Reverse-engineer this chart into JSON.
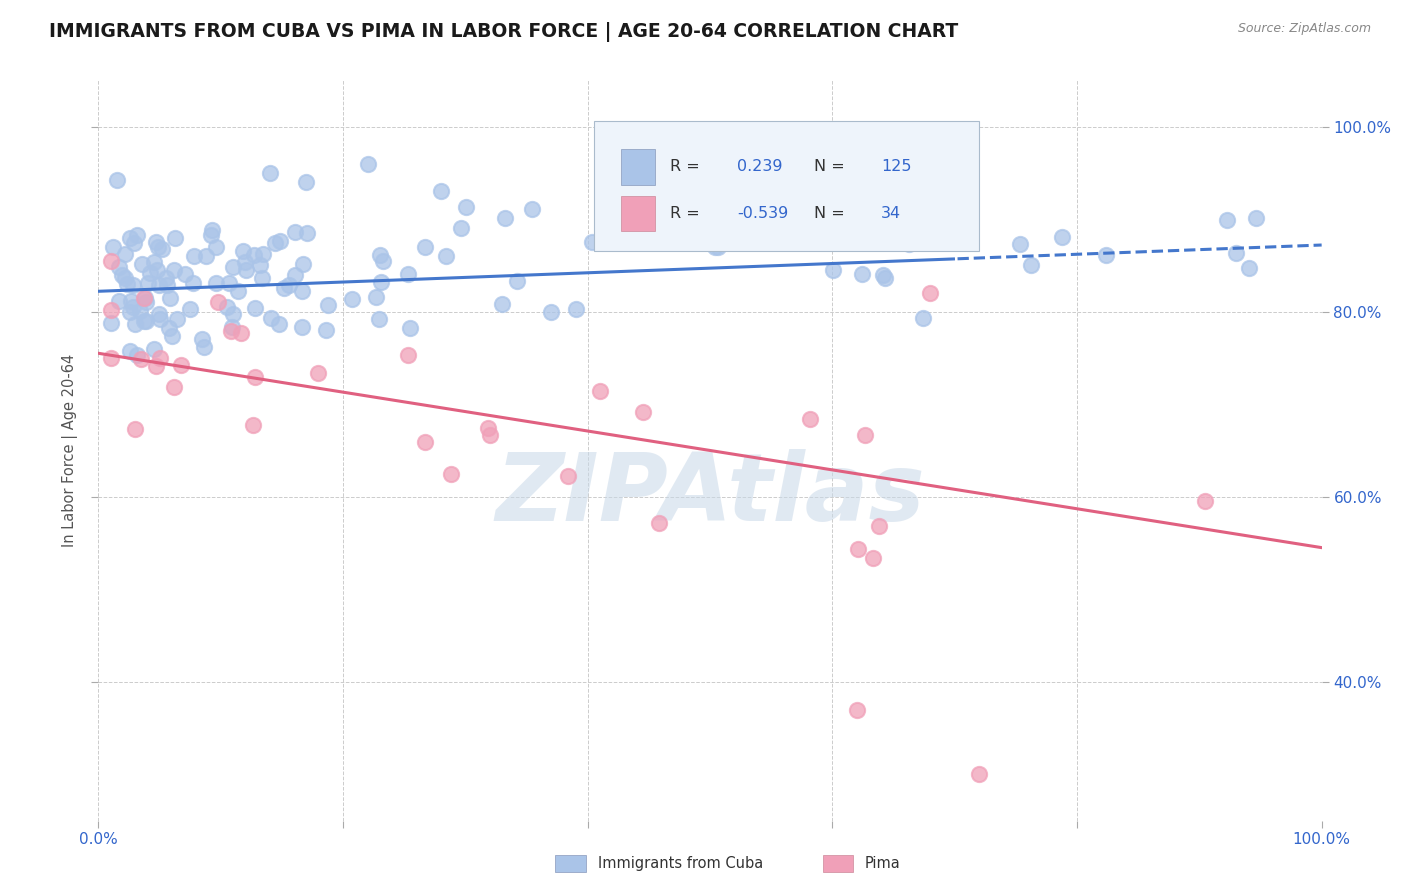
{
  "title": "IMMIGRANTS FROM CUBA VS PIMA IN LABOR FORCE | AGE 20-64 CORRELATION CHART",
  "source_text": "Source: ZipAtlas.com",
  "ylabel": "In Labor Force | Age 20-64",
  "xlim": [
    0.0,
    1.0
  ],
  "ylim": [
    0.25,
    1.05
  ],
  "background_color": "#ffffff",
  "plot_bg_color": "#ffffff",
  "grid_color": "#cccccc",
  "title_color": "#1a1a1a",
  "title_fontsize": 13.5,
  "source_fontsize": 9,
  "watermark_text": "ZIPAtlas",
  "watermark_color": "#c8d8e8",
  "watermark_alpha": 0.55,
  "legend_blue_label": "Immigrants from Cuba",
  "legend_pink_label": "Pima",
  "R_blue": 0.239,
  "N_blue": 125,
  "R_pink": -0.539,
  "N_pink": 34,
  "blue_scatter_color": "#aac4e8",
  "blue_line_color": "#4477cc",
  "pink_scatter_color": "#f0a0b8",
  "pink_line_color": "#e06080",
  "legend_bg_color": "#eef4fb",
  "legend_edge_color": "#aabbcc",
  "legend_blue_fill": "#aac4e8",
  "legend_pink_fill": "#f0a0b8",
  "tick_label_color": "#3366cc",
  "blue_line_start_y": 0.822,
  "blue_line_end_y": 0.872,
  "pink_line_start_y": 0.755,
  "pink_line_end_y": 0.545,
  "blue_dashed_cutoff": 0.7
}
